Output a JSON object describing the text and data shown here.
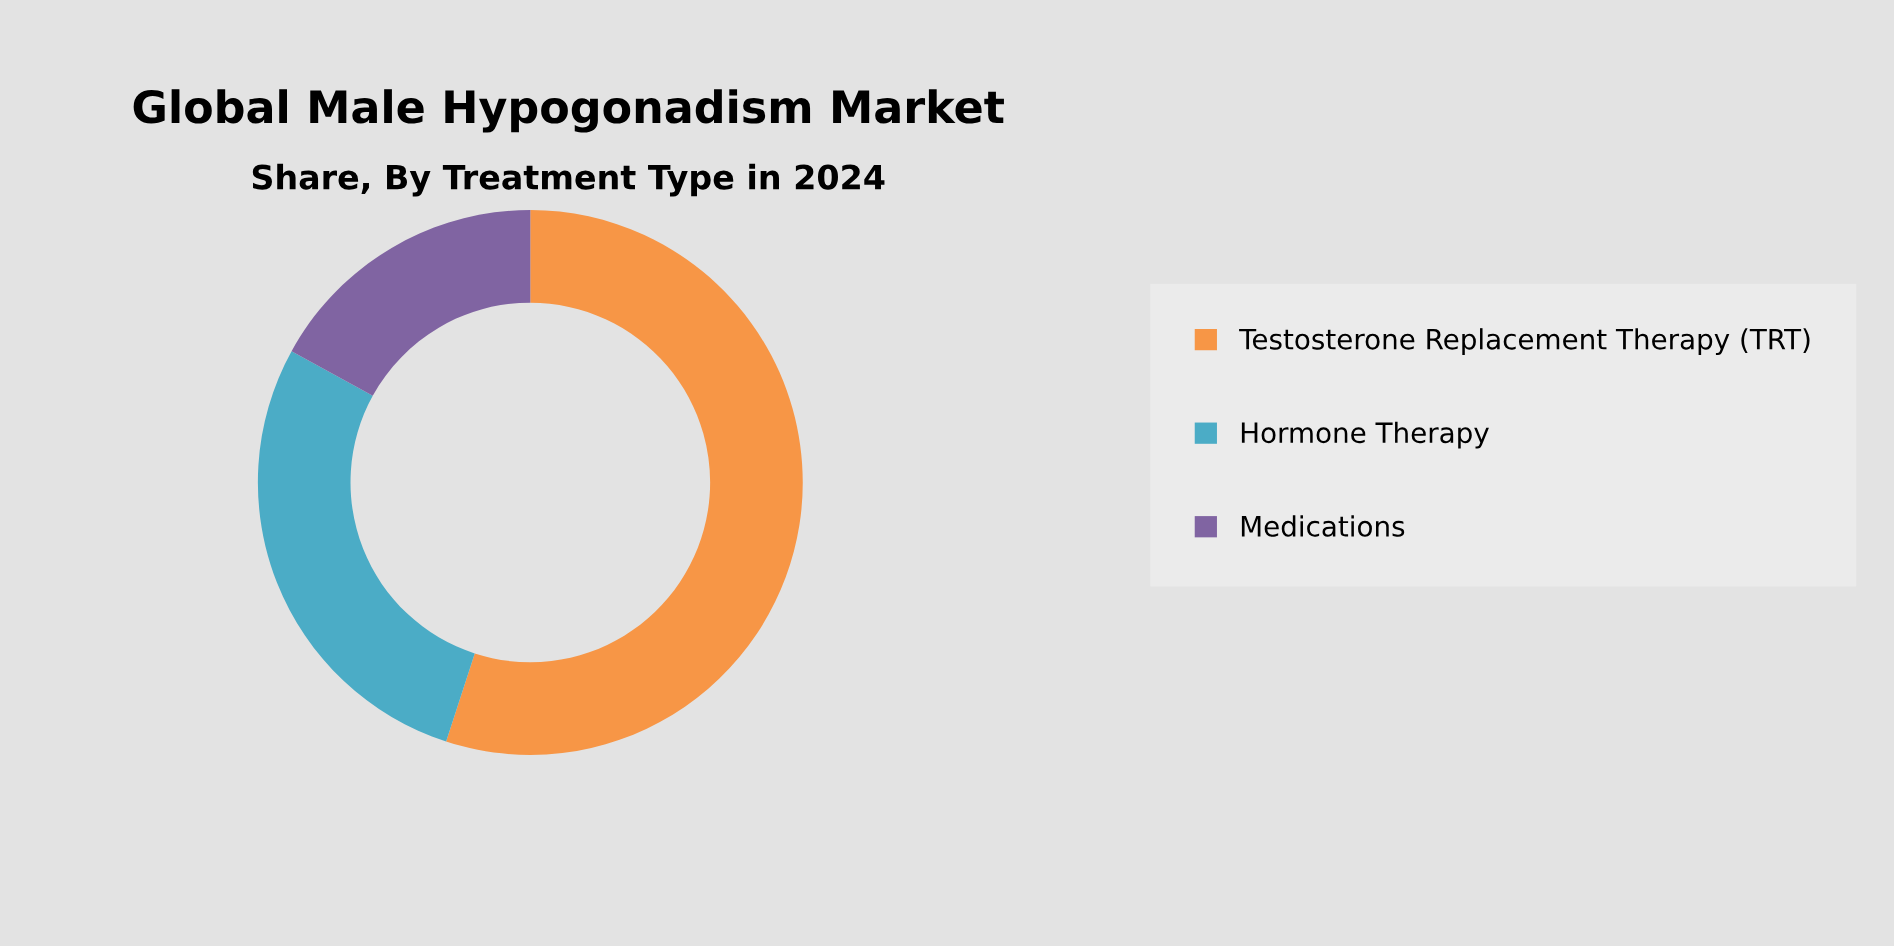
{
  "chart_data": {
    "type": "donut",
    "title": "Global Male Hypogonadism Market",
    "subtitle": "Share, By Treatment Type in 2024",
    "categories": [
      "Testosterone Replacement Therapy (TRT)",
      "Hormone Therapy",
      "Medications"
    ],
    "values": [
      55,
      28,
      17
    ],
    "colors": [
      "#f79646",
      "#4bacc6",
      "#8064a2"
    ],
    "legend": "right"
  }
}
